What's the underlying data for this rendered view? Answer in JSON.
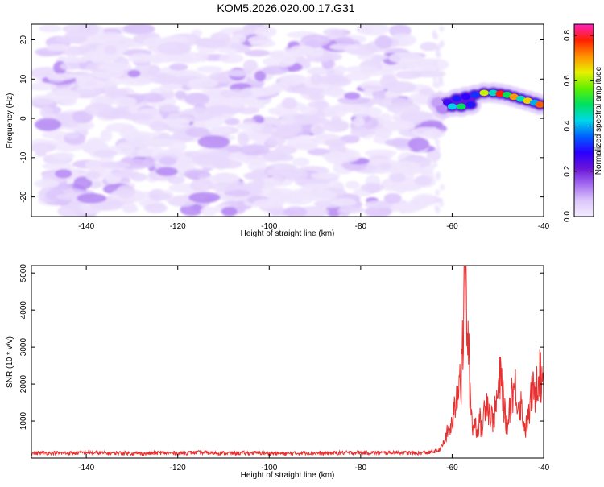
{
  "title": "KOM5.2026.020.00.17.G31",
  "chart_data": [
    {
      "type": "heatmap",
      "xlabel": "Height of straight line (km)",
      "ylabel": "Frequency (Hz)",
      "xlim": [
        -152,
        -40
      ],
      "ylim": [
        -25,
        24
      ],
      "x_ticks": [
        -140,
        -120,
        -100,
        -80,
        -60,
        -40
      ],
      "y_ticks": [
        -20,
        -10,
        0,
        10,
        20
      ],
      "colorbar": {
        "label": "Normalized spectral amplitude",
        "range": [
          0,
          0.85
        ],
        "ticks": [
          0.0,
          0.2,
          0.4,
          0.6,
          0.8
        ],
        "colors": [
          "#f4ecff",
          "#dcc6fb",
          "#a46cf0",
          "#6a14d8",
          "#2a00ff",
          "#0060ff",
          "#00d8e8",
          "#00e060",
          "#60f000",
          "#e8f000",
          "#ff9000",
          "#ff2000",
          "#ff20c0"
        ]
      },
      "noise_region": {
        "x_range": [
          -150,
          -64
        ],
        "y_range": [
          -24,
          23
        ],
        "max_amplitude": 0.12
      },
      "signal_track": [
        {
          "x": -63,
          "y": 4,
          "a": 0.1
        },
        {
          "x": -61,
          "y": 4,
          "a": 0.26
        },
        {
          "x": -59,
          "y": 5,
          "a": 0.3
        },
        {
          "x": -57,
          "y": 5.5,
          "a": 0.28
        },
        {
          "x": -55,
          "y": 6,
          "a": 0.32
        },
        {
          "x": -53,
          "y": 6.5,
          "a": 0.62
        },
        {
          "x": -51,
          "y": 6.5,
          "a": 0.45
        },
        {
          "x": -49.5,
          "y": 6.3,
          "a": 0.78
        },
        {
          "x": -48,
          "y": 6,
          "a": 0.5
        },
        {
          "x": -46.5,
          "y": 5.5,
          "a": 0.7
        },
        {
          "x": -45,
          "y": 5,
          "a": 0.45
        },
        {
          "x": -43.5,
          "y": 4.5,
          "a": 0.66
        },
        {
          "x": -42,
          "y": 4,
          "a": 0.4
        },
        {
          "x": -40.8,
          "y": 3.5,
          "a": 0.74
        }
      ],
      "signal_track_lower": [
        {
          "x": -62,
          "y": 2.5,
          "a": 0.12
        },
        {
          "x": -60,
          "y": 3,
          "a": 0.42
        },
        {
          "x": -58,
          "y": 3,
          "a": 0.5
        },
        {
          "x": -56,
          "y": 3.5,
          "a": 0.3
        }
      ]
    },
    {
      "type": "line",
      "xlabel": "Height of straight line (km)",
      "ylabel": "SNR (10 * v/v)",
      "xlim": [
        -152,
        -40
      ],
      "ylim": [
        0,
        5200
      ],
      "x_ticks": [
        -140,
        -120,
        -100,
        -80,
        -60,
        -40
      ],
      "y_ticks": [
        1000,
        2000,
        3000,
        4000,
        5000
      ],
      "series": [
        {
          "name": "SNR",
          "color": "#e83030",
          "x": [
            -152,
            -148,
            -144,
            -140,
            -136,
            -132,
            -128,
            -124,
            -120,
            -116,
            -112,
            -108,
            -104,
            -100,
            -96,
            -92,
            -88,
            -84,
            -80,
            -76,
            -72,
            -68,
            -65,
            -63,
            -62,
            -61,
            -60,
            -59.5,
            -59,
            -58.5,
            -58,
            -57.5,
            -57.3,
            -57,
            -56.5,
            -56,
            -55.5,
            -55,
            -54.5,
            -54,
            -53.5,
            -53,
            -52.5,
            -52,
            -51,
            -50,
            -49.5,
            -49,
            -48.5,
            -48,
            -47.5,
            -47,
            -46,
            -45.5,
            -45,
            -44.5,
            -44,
            -43,
            -42.5,
            -42,
            -41.5,
            -41,
            -40.5,
            -40
          ],
          "y": [
            130,
            140,
            130,
            150,
            130,
            140,
            120,
            140,
            130,
            150,
            140,
            130,
            140,
            130,
            120,
            140,
            130,
            140,
            150,
            140,
            150,
            130,
            150,
            200,
            350,
            700,
            900,
            1300,
            1700,
            2400,
            1900,
            3800,
            5200,
            4600,
            3000,
            1600,
            800,
            1000,
            700,
            1100,
            650,
            1300,
            1700,
            1300,
            1000,
            1700,
            2150,
            1900,
            1200,
            800,
            1300,
            1800,
            1900,
            1400,
            1500,
            1100,
            750,
            1300,
            1900,
            1600,
            2200,
            2400,
            2000,
            2600
          ]
        }
      ]
    }
  ]
}
